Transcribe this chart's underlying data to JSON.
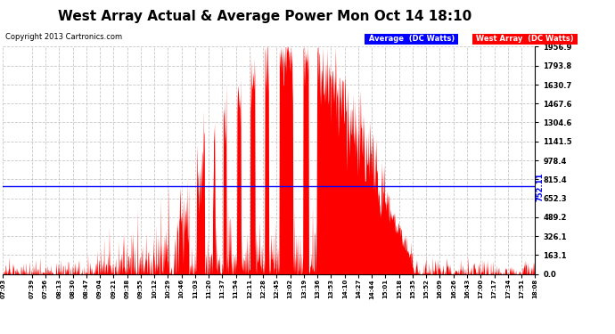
{
  "title": "West Array Actual & Average Power Mon Oct 14 18:10",
  "copyright": "Copyright 2013 Cartronics.com",
  "average_value": 752.11,
  "ymax": 1956.9,
  "ymin": 0.0,
  "yticks": [
    0.0,
    163.1,
    326.1,
    489.2,
    652.3,
    815.4,
    978.4,
    1141.5,
    1304.6,
    1467.6,
    1630.7,
    1793.8,
    1956.9
  ],
  "ytick_labels": [
    "0.0",
    "163.1",
    "326.1",
    "489.2",
    "652.3",
    "815.4",
    "978.4",
    "1141.5",
    "1304.6",
    "1467.6",
    "1630.7",
    "1793.8",
    "1956.9"
  ],
  "xtick_labels": [
    "07:03",
    "07:39",
    "07:56",
    "08:13",
    "08:30",
    "08:47",
    "09:04",
    "09:21",
    "09:38",
    "09:55",
    "10:12",
    "10:29",
    "10:46",
    "11:03",
    "11:20",
    "11:37",
    "11:54",
    "12:11",
    "12:28",
    "12:45",
    "13:02",
    "13:19",
    "13:36",
    "13:53",
    "14:10",
    "14:27",
    "14:44",
    "15:01",
    "15:18",
    "15:35",
    "15:52",
    "16:09",
    "16:26",
    "16:43",
    "17:00",
    "17:17",
    "17:34",
    "17:51",
    "18:08"
  ],
  "bg_color": "#ffffff",
  "fill_color": "#ff0000",
  "average_line_color": "#0000ff",
  "grid_color": "#c8c8c8",
  "title_fontsize": 11,
  "copyright_fontsize": 6,
  "legend_blue_label": "Average  (DC Watts)",
  "legend_red_label": "West Array  (DC Watts)"
}
